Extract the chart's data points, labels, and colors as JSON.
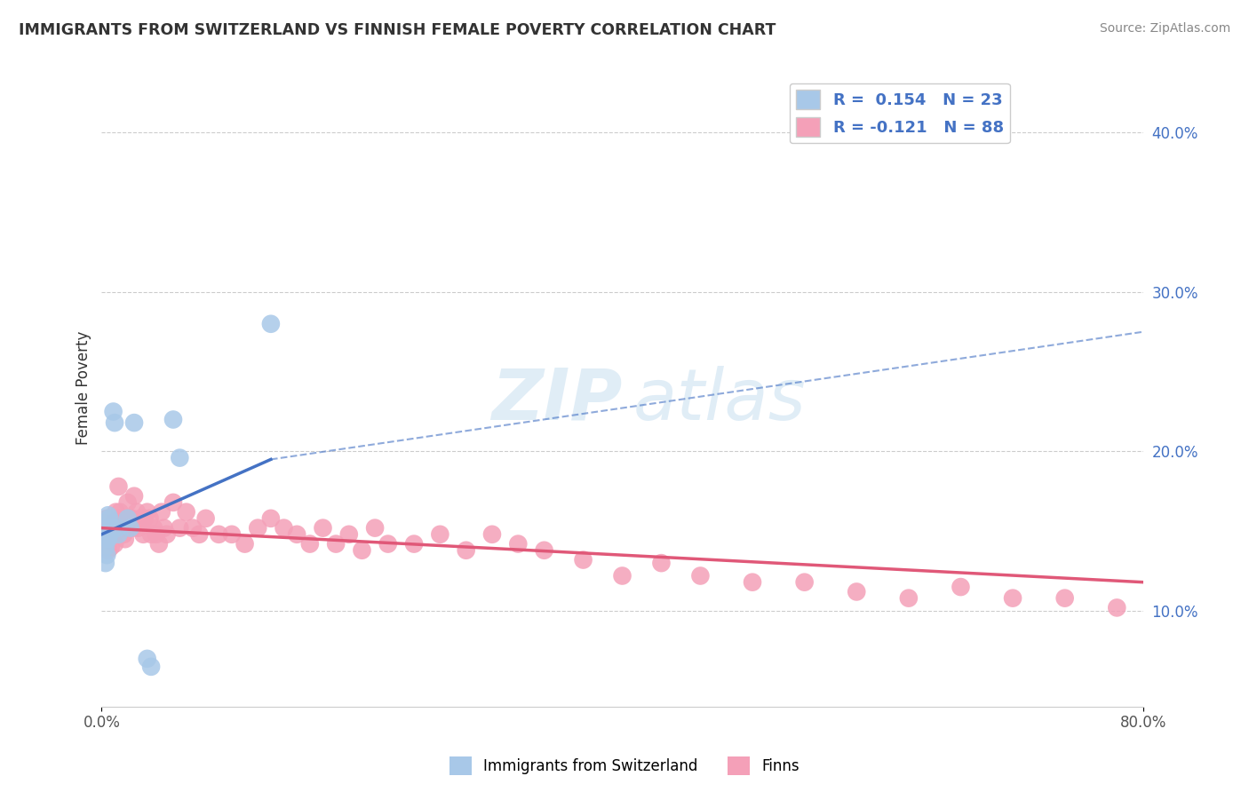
{
  "title": "IMMIGRANTS FROM SWITZERLAND VS FINNISH FEMALE POVERTY CORRELATION CHART",
  "source": "Source: ZipAtlas.com",
  "ylabel": "Female Poverty",
  "right_yticks": [
    "10.0%",
    "20.0%",
    "30.0%",
    "40.0%"
  ],
  "right_ytick_vals": [
    0.1,
    0.2,
    0.3,
    0.4
  ],
  "xlim": [
    0.0,
    0.8
  ],
  "ylim": [
    0.04,
    0.44
  ],
  "swiss_color": "#a8c8e8",
  "finn_color": "#f4a0b8",
  "swiss_line_color": "#4472C4",
  "finn_line_color": "#E05878",
  "grid_color": "#cccccc",
  "swiss_line_x0": 0.0,
  "swiss_line_y0": 0.148,
  "swiss_line_x1": 0.13,
  "swiss_line_y1": 0.195,
  "swiss_line_dash_x0": 0.13,
  "swiss_line_dash_y0": 0.195,
  "swiss_line_dash_x1": 0.8,
  "swiss_line_dash_y1": 0.275,
  "finn_line_x0": 0.0,
  "finn_line_y0": 0.152,
  "finn_line_x1": 0.8,
  "finn_line_y1": 0.118,
  "swiss_scatter_x": [
    0.003,
    0.003,
    0.004,
    0.004,
    0.005,
    0.005,
    0.005,
    0.006,
    0.006,
    0.007,
    0.008,
    0.009,
    0.01,
    0.012,
    0.013,
    0.02,
    0.022,
    0.025,
    0.035,
    0.038,
    0.055,
    0.06,
    0.13
  ],
  "swiss_scatter_y": [
    0.13,
    0.14,
    0.135,
    0.145,
    0.145,
    0.152,
    0.16,
    0.148,
    0.158,
    0.152,
    0.152,
    0.225,
    0.218,
    0.152,
    0.148,
    0.158,
    0.152,
    0.218,
    0.07,
    0.065,
    0.22,
    0.196,
    0.28
  ],
  "finn_scatter_x": [
    0.002,
    0.003,
    0.004,
    0.005,
    0.005,
    0.006,
    0.007,
    0.007,
    0.008,
    0.009,
    0.01,
    0.011,
    0.012,
    0.013,
    0.014,
    0.015,
    0.016,
    0.017,
    0.018,
    0.019,
    0.02,
    0.021,
    0.022,
    0.023,
    0.024,
    0.025,
    0.027,
    0.028,
    0.03,
    0.032,
    0.033,
    0.035,
    0.037,
    0.038,
    0.04,
    0.042,
    0.044,
    0.046,
    0.048,
    0.05,
    0.055,
    0.06,
    0.065,
    0.07,
    0.075,
    0.08,
    0.09,
    0.1,
    0.11,
    0.12,
    0.13,
    0.14,
    0.15,
    0.16,
    0.17,
    0.18,
    0.19,
    0.2,
    0.21,
    0.22,
    0.24,
    0.26,
    0.28,
    0.3,
    0.32,
    0.34,
    0.37,
    0.4,
    0.43,
    0.46,
    0.5,
    0.54,
    0.58,
    0.62,
    0.66,
    0.7,
    0.74,
    0.78
  ],
  "finn_scatter_y": [
    0.155,
    0.148,
    0.158,
    0.145,
    0.138,
    0.148,
    0.14,
    0.152,
    0.148,
    0.155,
    0.142,
    0.162,
    0.155,
    0.178,
    0.162,
    0.158,
    0.152,
    0.148,
    0.145,
    0.152,
    0.168,
    0.158,
    0.152,
    0.158,
    0.152,
    0.172,
    0.162,
    0.152,
    0.158,
    0.148,
    0.158,
    0.162,
    0.158,
    0.148,
    0.152,
    0.148,
    0.142,
    0.162,
    0.152,
    0.148,
    0.168,
    0.152,
    0.162,
    0.152,
    0.148,
    0.158,
    0.148,
    0.148,
    0.142,
    0.152,
    0.158,
    0.152,
    0.148,
    0.142,
    0.152,
    0.142,
    0.148,
    0.138,
    0.152,
    0.142,
    0.142,
    0.148,
    0.138,
    0.148,
    0.142,
    0.138,
    0.132,
    0.122,
    0.13,
    0.122,
    0.118,
    0.118,
    0.112,
    0.108,
    0.115,
    0.108,
    0.108,
    0.102
  ],
  "bottom_legend_labels": [
    "Immigrants from Switzerland",
    "Finns"
  ]
}
